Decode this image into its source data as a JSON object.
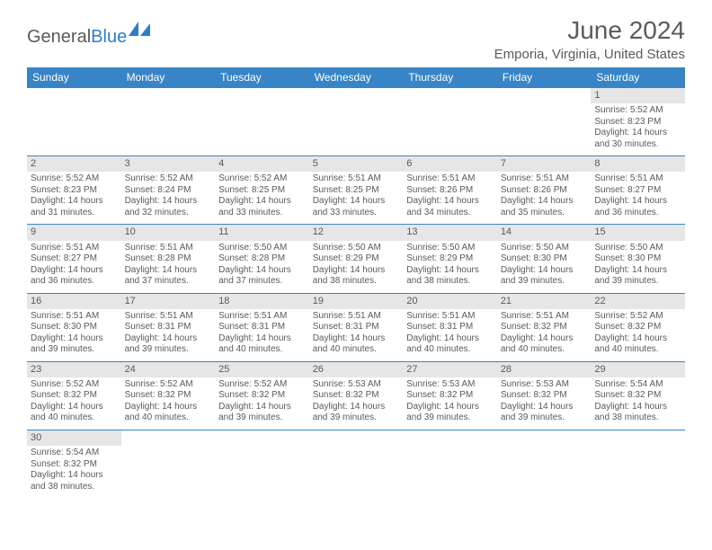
{
  "logo": {
    "general": "General",
    "blue": "Blue"
  },
  "title": "June 2024",
  "location": "Emporia, Virginia, United States",
  "header_bg": "#3785c7",
  "daynum_bg": "#e6e6e6",
  "text_color": "#5a5a5a",
  "days": [
    "Sunday",
    "Monday",
    "Tuesday",
    "Wednesday",
    "Thursday",
    "Friday",
    "Saturday"
  ],
  "weeks": [
    [
      null,
      null,
      null,
      null,
      null,
      null,
      {
        "n": "1",
        "sr": "5:52 AM",
        "ss": "8:23 PM",
        "dl": "14 hours and 30 minutes."
      }
    ],
    [
      {
        "n": "2",
        "sr": "5:52 AM",
        "ss": "8:23 PM",
        "dl": "14 hours and 31 minutes."
      },
      {
        "n": "3",
        "sr": "5:52 AM",
        "ss": "8:24 PM",
        "dl": "14 hours and 32 minutes."
      },
      {
        "n": "4",
        "sr": "5:52 AM",
        "ss": "8:25 PM",
        "dl": "14 hours and 33 minutes."
      },
      {
        "n": "5",
        "sr": "5:51 AM",
        "ss": "8:25 PM",
        "dl": "14 hours and 33 minutes."
      },
      {
        "n": "6",
        "sr": "5:51 AM",
        "ss": "8:26 PM",
        "dl": "14 hours and 34 minutes."
      },
      {
        "n": "7",
        "sr": "5:51 AM",
        "ss": "8:26 PM",
        "dl": "14 hours and 35 minutes."
      },
      {
        "n": "8",
        "sr": "5:51 AM",
        "ss": "8:27 PM",
        "dl": "14 hours and 36 minutes."
      }
    ],
    [
      {
        "n": "9",
        "sr": "5:51 AM",
        "ss": "8:27 PM",
        "dl": "14 hours and 36 minutes."
      },
      {
        "n": "10",
        "sr": "5:51 AM",
        "ss": "8:28 PM",
        "dl": "14 hours and 37 minutes."
      },
      {
        "n": "11",
        "sr": "5:50 AM",
        "ss": "8:28 PM",
        "dl": "14 hours and 37 minutes."
      },
      {
        "n": "12",
        "sr": "5:50 AM",
        "ss": "8:29 PM",
        "dl": "14 hours and 38 minutes."
      },
      {
        "n": "13",
        "sr": "5:50 AM",
        "ss": "8:29 PM",
        "dl": "14 hours and 38 minutes."
      },
      {
        "n": "14",
        "sr": "5:50 AM",
        "ss": "8:30 PM",
        "dl": "14 hours and 39 minutes."
      },
      {
        "n": "15",
        "sr": "5:50 AM",
        "ss": "8:30 PM",
        "dl": "14 hours and 39 minutes."
      }
    ],
    [
      {
        "n": "16",
        "sr": "5:51 AM",
        "ss": "8:30 PM",
        "dl": "14 hours and 39 minutes."
      },
      {
        "n": "17",
        "sr": "5:51 AM",
        "ss": "8:31 PM",
        "dl": "14 hours and 39 minutes."
      },
      {
        "n": "18",
        "sr": "5:51 AM",
        "ss": "8:31 PM",
        "dl": "14 hours and 40 minutes."
      },
      {
        "n": "19",
        "sr": "5:51 AM",
        "ss": "8:31 PM",
        "dl": "14 hours and 40 minutes."
      },
      {
        "n": "20",
        "sr": "5:51 AM",
        "ss": "8:31 PM",
        "dl": "14 hours and 40 minutes."
      },
      {
        "n": "21",
        "sr": "5:51 AM",
        "ss": "8:32 PM",
        "dl": "14 hours and 40 minutes."
      },
      {
        "n": "22",
        "sr": "5:52 AM",
        "ss": "8:32 PM",
        "dl": "14 hours and 40 minutes."
      }
    ],
    [
      {
        "n": "23",
        "sr": "5:52 AM",
        "ss": "8:32 PM",
        "dl": "14 hours and 40 minutes."
      },
      {
        "n": "24",
        "sr": "5:52 AM",
        "ss": "8:32 PM",
        "dl": "14 hours and 40 minutes."
      },
      {
        "n": "25",
        "sr": "5:52 AM",
        "ss": "8:32 PM",
        "dl": "14 hours and 39 minutes."
      },
      {
        "n": "26",
        "sr": "5:53 AM",
        "ss": "8:32 PM",
        "dl": "14 hours and 39 minutes."
      },
      {
        "n": "27",
        "sr": "5:53 AM",
        "ss": "8:32 PM",
        "dl": "14 hours and 39 minutes."
      },
      {
        "n": "28",
        "sr": "5:53 AM",
        "ss": "8:32 PM",
        "dl": "14 hours and 39 minutes."
      },
      {
        "n": "29",
        "sr": "5:54 AM",
        "ss": "8:32 PM",
        "dl": "14 hours and 38 minutes."
      }
    ],
    [
      {
        "n": "30",
        "sr": "5:54 AM",
        "ss": "8:32 PM",
        "dl": "14 hours and 38 minutes."
      },
      null,
      null,
      null,
      null,
      null,
      null
    ]
  ],
  "labels": {
    "sunrise": "Sunrise:",
    "sunset": "Sunset:",
    "daylight": "Daylight:"
  }
}
